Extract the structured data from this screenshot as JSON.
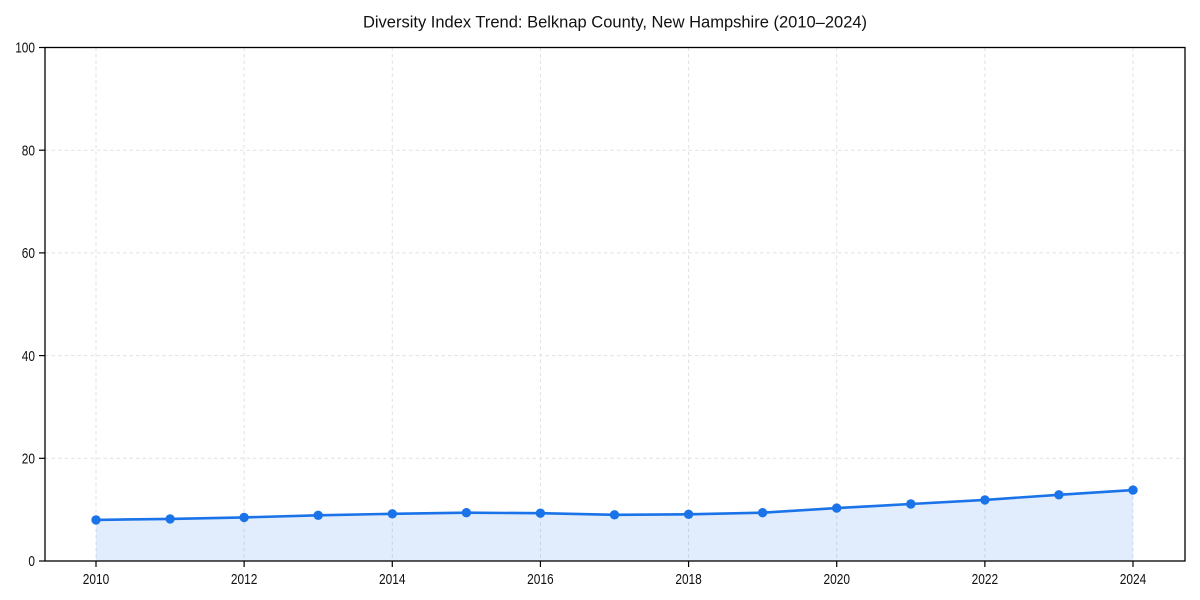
{
  "chart_data": {
    "type": "area",
    "title": "Diversity Index Trend: Belknap County, New Hampshire (2010–2024)",
    "categories": [
      2010,
      2011,
      2012,
      2013,
      2014,
      2015,
      2016,
      2017,
      2018,
      2019,
      2020,
      2021,
      2022,
      2023,
      2024
    ],
    "values": [
      8.0,
      8.2,
      8.5,
      8.9,
      9.2,
      9.4,
      9.3,
      9.0,
      9.1,
      9.4,
      10.3,
      11.1,
      11.9,
      12.9,
      13.8
    ],
    "xlabel": "",
    "ylabel": "",
    "ylim": [
      0,
      100
    ],
    "yticks": [
      0,
      20,
      40,
      60,
      80,
      100
    ],
    "xticks": [
      2010,
      2012,
      2014,
      2016,
      2018,
      2020,
      2022,
      2024
    ],
    "grid": "dashed",
    "legend": "none",
    "marker": "circle",
    "colors": {
      "line": "#1a73e8",
      "fill": "rgba(26,115,232,0.13)",
      "grid": "#e1e1e1",
      "axis": "#000000",
      "text": "#111111",
      "background": "#ffffff"
    }
  }
}
